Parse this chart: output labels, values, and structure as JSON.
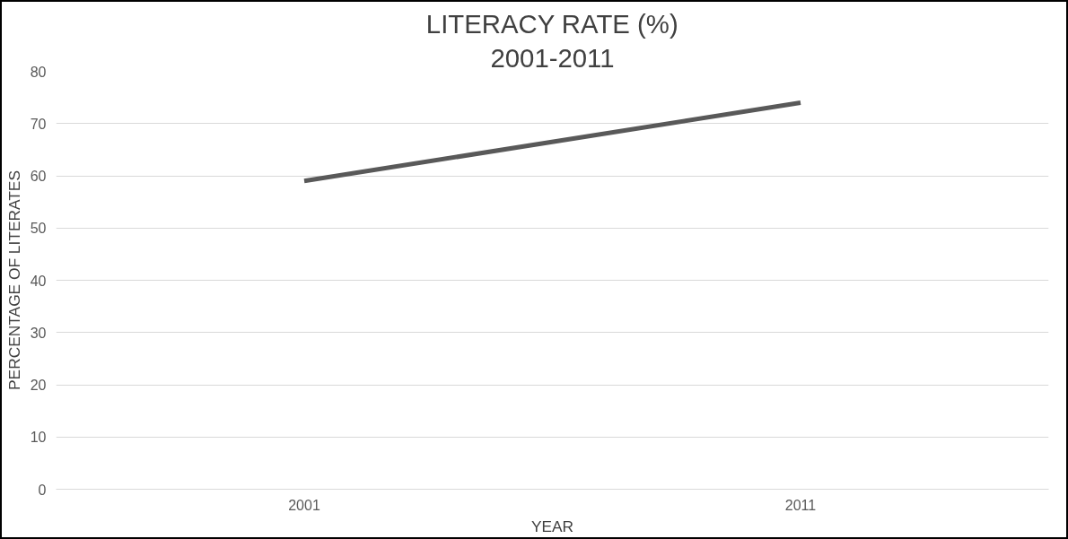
{
  "chart_data": {
    "type": "line",
    "title": "LITERACY RATE (%)",
    "subtitle": "2001-2011",
    "xlabel": "YEAR",
    "ylabel": "PERCENTAGE OF LITERATES",
    "categories": [
      "2001",
      "2011"
    ],
    "series": [
      {
        "color": "#595959",
        "values": [
          59,
          74
        ]
      }
    ],
    "ylim": [
      0,
      80
    ],
    "yticks": [
      0,
      10,
      20,
      30,
      40,
      50,
      60,
      70,
      80
    ],
    "grid": "y",
    "marker": "none",
    "line_style": "solid"
  }
}
